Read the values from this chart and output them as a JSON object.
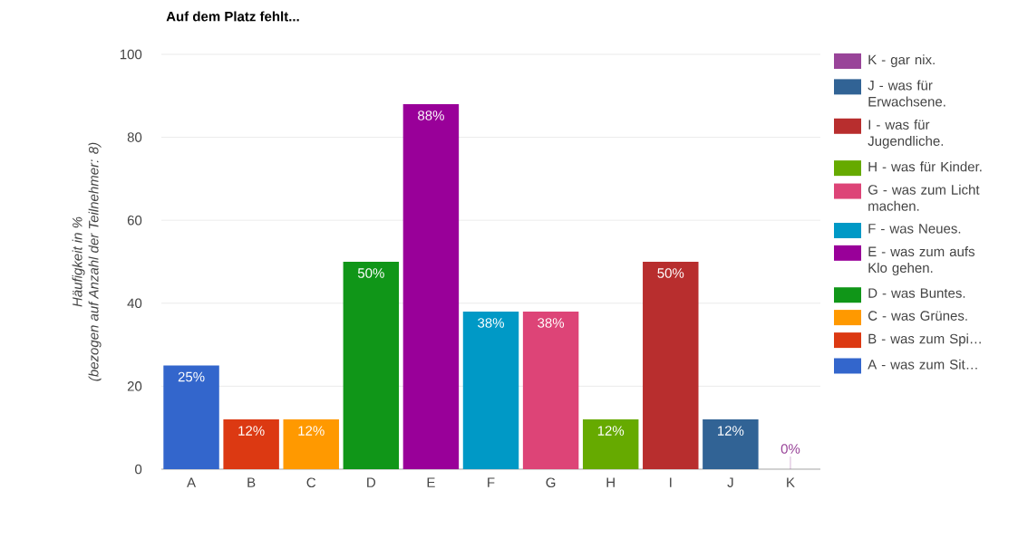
{
  "chart_data": {
    "type": "bar",
    "title": "Auf dem Platz fehlt...",
    "ylabel": "Häufigkeit in %",
    "annotations": [
      "(bezogen auf Anzahl der Teilnehmer: 8)"
    ],
    "categories": [
      "A",
      "B",
      "C",
      "D",
      "E",
      "F",
      "G",
      "H",
      "I",
      "J",
      "K"
    ],
    "series": [
      {
        "name": "A - was zum Sit…",
        "color": "#3366cc",
        "values": [
          25,
          null,
          null,
          null,
          null,
          null,
          null,
          null,
          null,
          null,
          null
        ],
        "value_labels": [
          "25%",
          null,
          null,
          null,
          null,
          null,
          null,
          null,
          null,
          null,
          null
        ]
      },
      {
        "name": "B - was zum Spi…",
        "color": "#dc3912",
        "values": [
          null,
          12,
          null,
          null,
          null,
          null,
          null,
          null,
          null,
          null,
          null
        ],
        "value_labels": [
          null,
          "12%",
          null,
          null,
          null,
          null,
          null,
          null,
          null,
          null,
          null
        ]
      },
      {
        "name": "C - was Grünes.",
        "color": "#ff9900",
        "values": [
          null,
          null,
          12,
          null,
          null,
          null,
          null,
          null,
          null,
          null,
          null
        ],
        "value_labels": [
          null,
          null,
          "12%",
          null,
          null,
          null,
          null,
          null,
          null,
          null,
          null
        ]
      },
      {
        "name": "D - was Buntes.",
        "color": "#109618",
        "values": [
          null,
          null,
          null,
          50,
          null,
          null,
          null,
          null,
          null,
          null,
          null
        ],
        "value_labels": [
          null,
          null,
          null,
          "50%",
          null,
          null,
          null,
          null,
          null,
          null,
          null
        ]
      },
      {
        "name": "E - was zum aufs Klo gehen.",
        "color": "#990099",
        "values": [
          null,
          null,
          null,
          null,
          88,
          null,
          null,
          null,
          null,
          null,
          null
        ],
        "value_labels": [
          null,
          null,
          null,
          null,
          "88%",
          null,
          null,
          null,
          null,
          null,
          null
        ]
      },
      {
        "name": "F - was Neues.",
        "color": "#0099c6",
        "values": [
          null,
          null,
          null,
          null,
          null,
          38,
          null,
          null,
          null,
          null,
          null
        ],
        "value_labels": [
          null,
          null,
          null,
          null,
          null,
          "38%",
          null,
          null,
          null,
          null,
          null
        ]
      },
      {
        "name": "G - was zum Licht machen.",
        "color": "#dd4477",
        "values": [
          null,
          null,
          null,
          null,
          null,
          null,
          38,
          null,
          null,
          null,
          null
        ],
        "value_labels": [
          null,
          null,
          null,
          null,
          null,
          null,
          "38%",
          null,
          null,
          null,
          null
        ]
      },
      {
        "name": "H - was für Kinder.",
        "color": "#66aa00",
        "values": [
          null,
          null,
          null,
          null,
          null,
          null,
          null,
          12,
          null,
          null,
          null
        ],
        "value_labels": [
          null,
          null,
          null,
          null,
          null,
          null,
          null,
          "12%",
          null,
          null,
          null
        ]
      },
      {
        "name": "I - was für Jugendliche.",
        "color": "#b82e2e",
        "values": [
          null,
          null,
          null,
          null,
          null,
          null,
          null,
          null,
          50,
          null,
          null
        ],
        "value_labels": [
          null,
          null,
          null,
          null,
          null,
          null,
          null,
          null,
          "50%",
          null,
          null
        ]
      },
      {
        "name": "J - was für Erwachsene.",
        "color": "#316395",
        "values": [
          null,
          null,
          null,
          null,
          null,
          null,
          null,
          null,
          null,
          12,
          null
        ],
        "value_labels": [
          null,
          null,
          null,
          null,
          null,
          null,
          null,
          null,
          null,
          "12%",
          null
        ]
      },
      {
        "name": "K - gar nix.",
        "color": "#994499",
        "values": [
          null,
          null,
          null,
          null,
          null,
          null,
          null,
          null,
          null,
          null,
          0
        ],
        "value_labels": [
          null,
          null,
          null,
          null,
          null,
          null,
          null,
          null,
          null,
          null,
          "0%"
        ]
      }
    ],
    "ylim": [
      0,
      100
    ],
    "yticks": [
      0,
      20,
      40,
      60,
      80,
      100
    ],
    "grid": "y",
    "legend": "right"
  }
}
